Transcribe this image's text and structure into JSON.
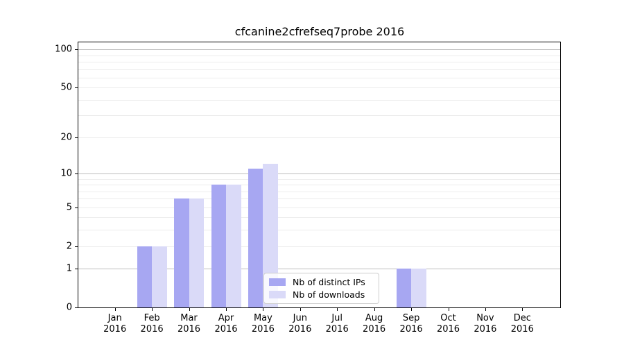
{
  "chart_data": {
    "type": "bar",
    "title": "cfcanine2cfrefseq7probe 2016",
    "categories": [
      {
        "month": "Jan",
        "year": "2016"
      },
      {
        "month": "Feb",
        "year": "2016"
      },
      {
        "month": "Mar",
        "year": "2016"
      },
      {
        "month": "Apr",
        "year": "2016"
      },
      {
        "month": "May",
        "year": "2016"
      },
      {
        "month": "Jun",
        "year": "2016"
      },
      {
        "month": "Jul",
        "year": "2016"
      },
      {
        "month": "Aug",
        "year": "2016"
      },
      {
        "month": "Sep",
        "year": "2016"
      },
      {
        "month": "Oct",
        "year": "2016"
      },
      {
        "month": "Nov",
        "year": "2016"
      },
      {
        "month": "Dec",
        "year": "2016"
      }
    ],
    "series": [
      {
        "name": "Nb of distinct IPs",
        "color": "#a7a7f2",
        "values": [
          0,
          2,
          6,
          8,
          11,
          0,
          0,
          0,
          1,
          0,
          0,
          0
        ]
      },
      {
        "name": "Nb of downloads",
        "color": "#dadaf8",
        "values": [
          0,
          2,
          6,
          8,
          12,
          0,
          0,
          0,
          1,
          0,
          0,
          0
        ]
      }
    ],
    "xlabel": "",
    "ylabel": "",
    "y_axis": {
      "scale": "log1p",
      "ylim": [
        0,
        115
      ],
      "ticks": [
        {
          "value": 0,
          "label": "0"
        },
        {
          "value": 1,
          "label": "1"
        },
        {
          "value": 2,
          "label": "2"
        },
        {
          "value": 5,
          "label": "5"
        },
        {
          "value": 10,
          "label": "10"
        },
        {
          "value": 20,
          "label": "20"
        },
        {
          "value": 50,
          "label": "50"
        },
        {
          "value": 100,
          "label": "100"
        }
      ],
      "major_gridlines": [
        1,
        10,
        100
      ],
      "minor_gridlines": [
        2,
        3,
        4,
        5,
        6,
        7,
        8,
        9,
        20,
        30,
        40,
        50,
        60,
        70,
        80,
        90
      ]
    },
    "grid": true,
    "legend_position": "lower-center",
    "colors": {
      "major_grid": "#bdbdbd",
      "minor_grid": "#ececec",
      "spine": "#000000",
      "text": "#000000",
      "background": "#ffffff"
    }
  }
}
